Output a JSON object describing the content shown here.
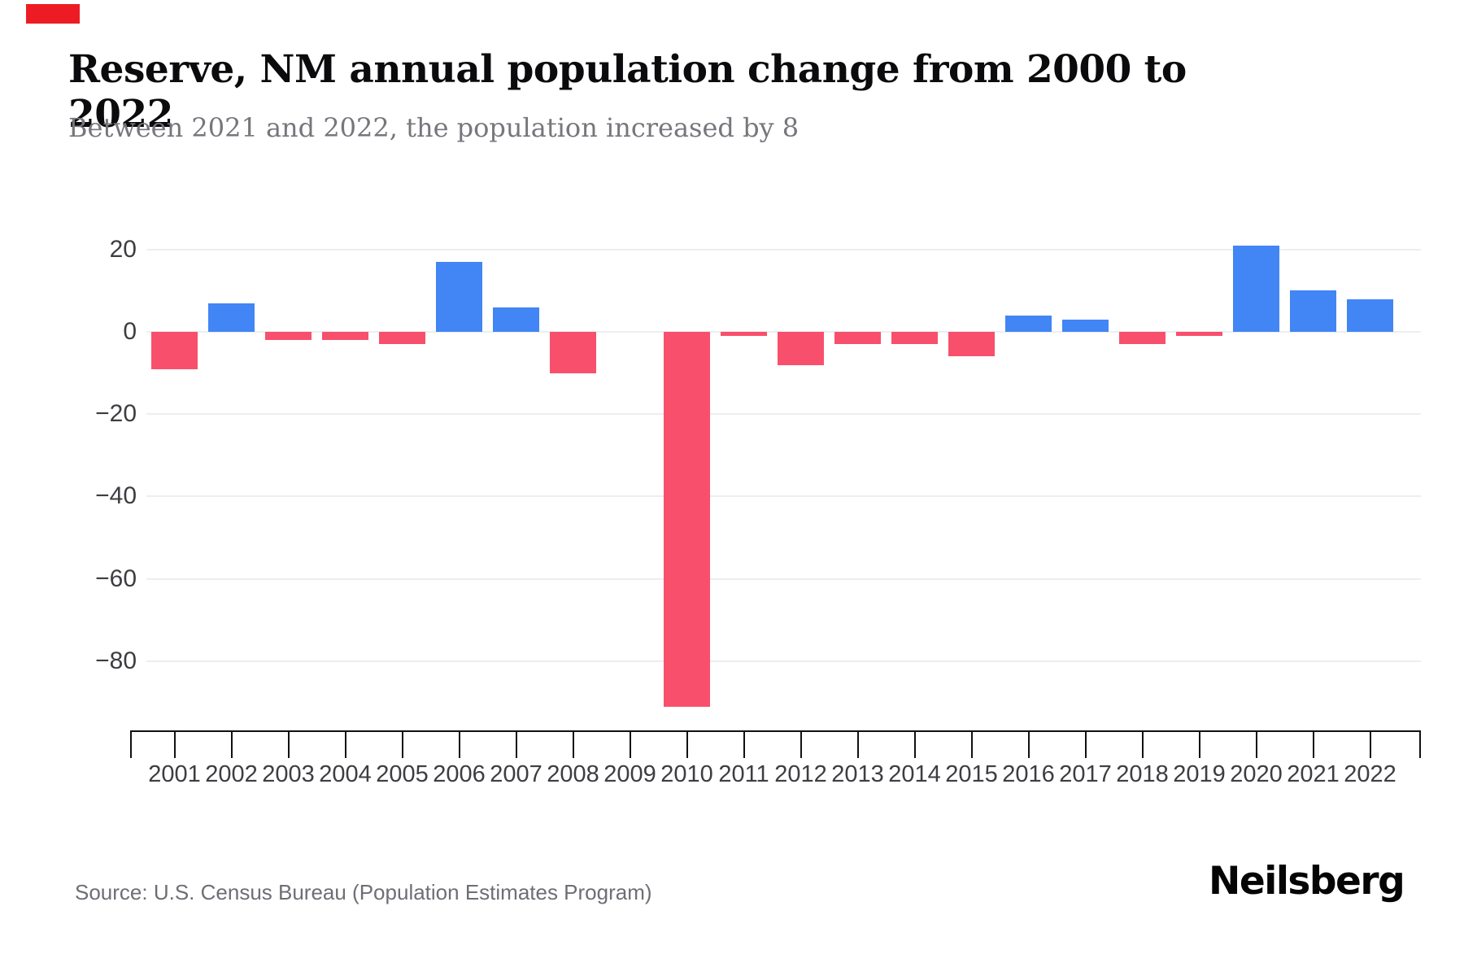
{
  "page": {
    "title": "Reserve, NM annual population change from 2000 to 2022",
    "subtitle": "Between 2021 and 2022, the population increased by 8",
    "source": "Source: U.S. Census Bureau (Population Estimates Program)",
    "brand": "Neilsberg"
  },
  "colors": {
    "positive_bar": "#4285f4",
    "negative_bar": "#f8506c",
    "gridline": "#eceef1",
    "axis": "#111111",
    "tick_label": "#3d3d42",
    "title": "#0b0b0d",
    "subtitle": "#76767c",
    "source": "#6e6e76",
    "corner_marker": "#ed1c24"
  },
  "chart_data": {
    "type": "bar",
    "title": "Reserve, NM annual population change from 2000 to 2022",
    "subtitle": "Between 2021 and 2022, the population increased by 8",
    "xlabel": "",
    "ylabel": "",
    "categories": [
      "2001",
      "2002",
      "2003",
      "2004",
      "2005",
      "2006",
      "2007",
      "2008",
      "2009",
      "2010",
      "2011",
      "2012",
      "2013",
      "2014",
      "2015",
      "2016",
      "2017",
      "2018",
      "2019",
      "2020",
      "2021",
      "2022"
    ],
    "values": [
      -9,
      7,
      -2,
      -2,
      -3,
      17,
      6,
      -10,
      0,
      -91,
      -1,
      -8,
      -3,
      -3,
      -6,
      4,
      3,
      -3,
      -1,
      21,
      10,
      8
    ],
    "series_note": "positive values blue, negative values red",
    "yticks": [
      {
        "label": "20",
        "value": 20
      },
      {
        "label": "0",
        "value": 0
      },
      {
        "label": "−20",
        "value": -20
      },
      {
        "label": "−40",
        "value": -40
      },
      {
        "label": "−60",
        "value": -60
      },
      {
        "label": "−80",
        "value": -80
      }
    ],
    "ylim": [
      -95,
      25
    ],
    "grid": "horizontal",
    "legend": "none",
    "source": "Source: U.S. Census Bureau (Population Estimates Program)"
  }
}
